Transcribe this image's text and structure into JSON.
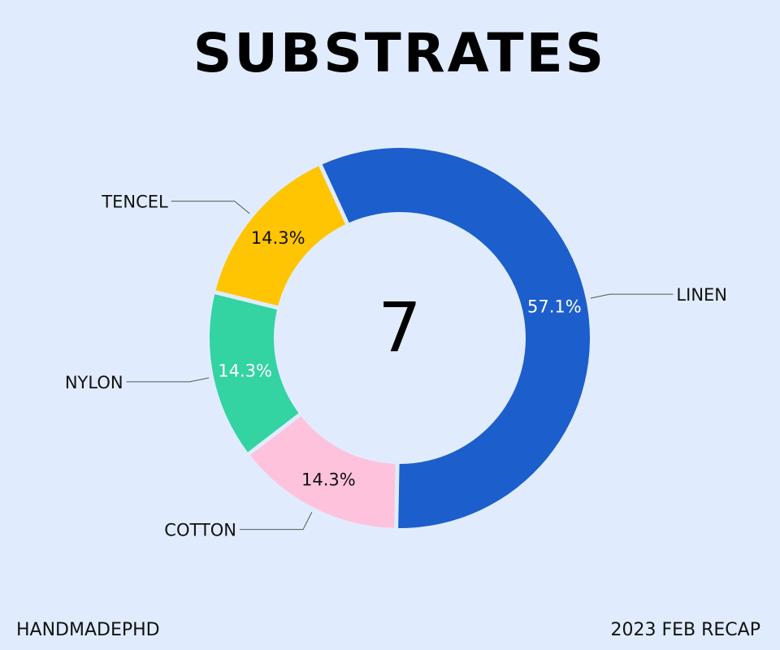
{
  "chart_data": {
    "type": "pie",
    "title": "SUBSTRATES",
    "center_label": "7",
    "slices": [
      {
        "label": "NYLON",
        "value": 1,
        "percent_label": "14.3%",
        "color": "#33d3a2",
        "text_color": "#ffffff"
      },
      {
        "label": "TENCEL",
        "value": 1,
        "percent_label": "14.3%",
        "color": "#ffc502",
        "text_color": "#111111"
      },
      {
        "label": "LINEN",
        "value": 4,
        "percent_label": "57.1%",
        "color": "#1c5ecb",
        "text_color": "#ffffff"
      },
      {
        "label": "COTTON",
        "value": 1,
        "percent_label": "14.3%",
        "color": "#fec2dc",
        "text_color": "#111111"
      }
    ]
  },
  "footer": {
    "left": "HANDMADEPHD",
    "right": "2023 FEB RECAP"
  }
}
